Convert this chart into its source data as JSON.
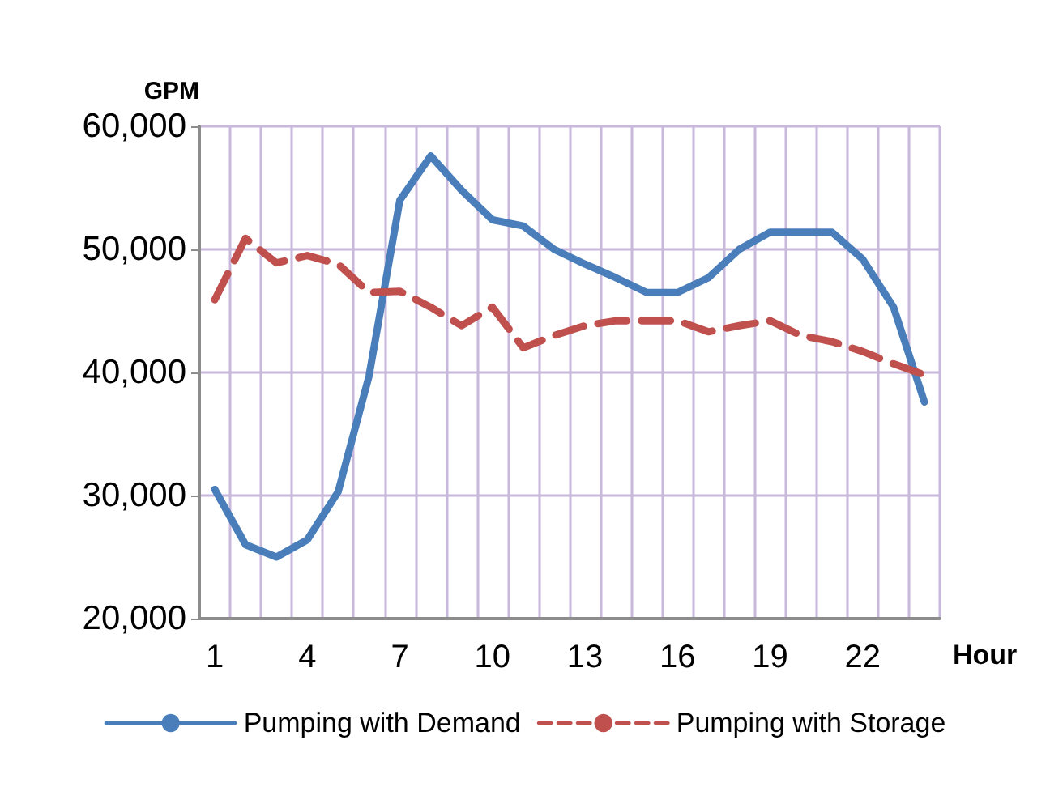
{
  "chart_data": {
    "type": "line",
    "xlabel": "Hour",
    "ylabel": "GPM",
    "categories": [
      "1",
      null,
      null,
      "4",
      null,
      null,
      "7",
      null,
      null,
      "10",
      null,
      null,
      "13",
      null,
      null,
      "16",
      null,
      null,
      "19",
      null,
      null,
      "22",
      null,
      null
    ],
    "series": [
      {
        "name": "Pumping with Demand",
        "color": "#4a7ebb",
        "line_style": "solid",
        "values": [
          30500,
          26000,
          25000,
          26400,
          30300,
          39700,
          54000,
          57600,
          54800,
          52400,
          51900,
          50000,
          48800,
          47700,
          46500,
          46500,
          47700,
          50000,
          51400,
          51400,
          51400,
          49200,
          45300,
          37600
        ]
      },
      {
        "name": "Pumping with Storage",
        "color": "#c0504d",
        "line_style": "dashed",
        "values": [
          45900,
          50900,
          48900,
          49500,
          48800,
          46500,
          46600,
          45300,
          43800,
          45300,
          42000,
          43000,
          43800,
          44200,
          44200,
          44200,
          43300,
          43800,
          44200,
          43000,
          42500,
          41700,
          40700,
          39800
        ]
      }
    ],
    "ylim": [
      20000,
      60000
    ],
    "yticks": [
      {
        "value": 20000,
        "label": "20,000"
      },
      {
        "value": 30000,
        "label": "30,000"
      },
      {
        "value": 40000,
        "label": "40,000"
      },
      {
        "value": 50000,
        "label": "50,000"
      },
      {
        "value": 60000,
        "label": "60,000"
      }
    ],
    "grid": true,
    "legend": "bottom",
    "marker": "none"
  }
}
